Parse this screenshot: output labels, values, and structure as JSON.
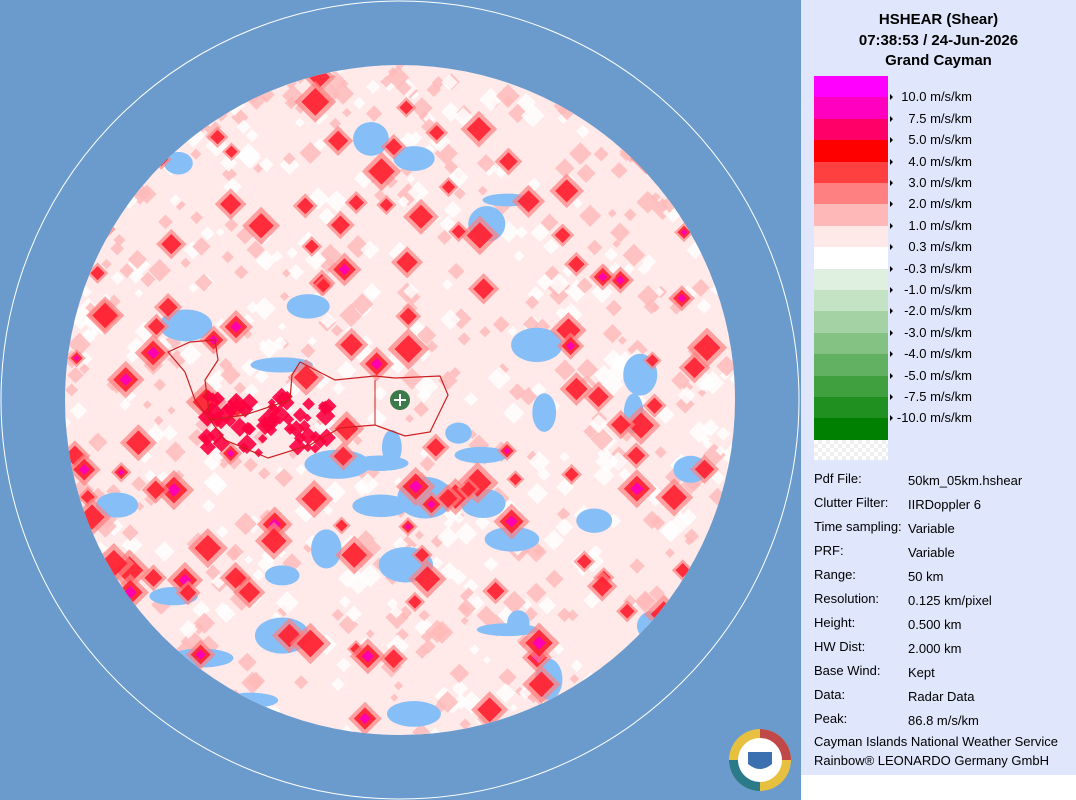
{
  "header": {
    "title": "HSHEAR (Shear)",
    "time": "07:38:53 / 24-Jun-2026",
    "location": "Grand Cayman"
  },
  "legend": {
    "colors": [
      "#ff00ff",
      "#ff00c0",
      "#ff0068",
      "#ff0000",
      "#ff4040",
      "#ff8080",
      "#ffb8b8",
      "#ffe8e8",
      "#ffffff",
      "#e0f0e0",
      "#c4e2c4",
      "#a4d2a4",
      "#84c284",
      "#62b062",
      "#40a040",
      "#209020",
      "#008000"
    ],
    "labels": [
      "10.0 m/s/km",
      "7.5 m/s/km",
      "5.0 m/s/km",
      "4.0 m/s/km",
      "3.0 m/s/km",
      "2.0 m/s/km",
      "1.0 m/s/km",
      "0.3 m/s/km",
      "-0.3 m/s/km",
      "-1.0 m/s/km",
      "-2.0 m/s/km",
      "-3.0 m/s/km",
      "-4.0 m/s/km",
      "-5.0 m/s/km",
      "-7.5 m/s/km",
      "-10.0 m/s/km"
    ]
  },
  "info": [
    [
      "Pdf File:",
      "50km_05km.hshear"
    ],
    [
      "Clutter Filter:",
      "IIRDoppler 6"
    ],
    [
      "Time sampling:",
      "Variable"
    ],
    [
      "PRF:",
      "Variable"
    ],
    [
      "Range:",
      "50 km"
    ],
    [
      "Resolution:",
      "0.125 km/pixel"
    ],
    [
      "Height:",
      "0.500 km"
    ],
    [
      "HW Dist:",
      "2.000 km"
    ],
    [
      "Base Wind:",
      "Kept"
    ],
    [
      "Data:",
      "Radar Data"
    ],
    [
      "Peak:",
      "86.8 m/s/km"
    ]
  ],
  "footer": [
    "Cayman Islands National Weather Service",
    "Rainbow® LEONARDO Germany GmbH"
  ]
}
